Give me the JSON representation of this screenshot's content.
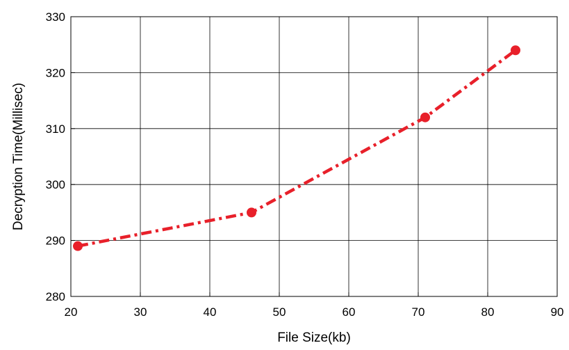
{
  "chart_data": {
    "type": "line",
    "xlabel": "File Size(kb)",
    "ylabel": "Decryption Time(Millisec)",
    "xlim": [
      20,
      90
    ],
    "ylim": [
      280,
      330
    ],
    "xticks": [
      "20",
      "30",
      "40",
      "50",
      "60",
      "70",
      "80",
      "90"
    ],
    "yticks": [
      "280",
      "290",
      "300",
      "310",
      "320",
      "330"
    ],
    "grid": true,
    "series": [
      {
        "x": [
          21,
          46,
          71,
          84
        ],
        "y": [
          289,
          295,
          312,
          324
        ],
        "color": "#e8202a",
        "line_style": "dash-dot",
        "marker": "circle"
      }
    ]
  }
}
